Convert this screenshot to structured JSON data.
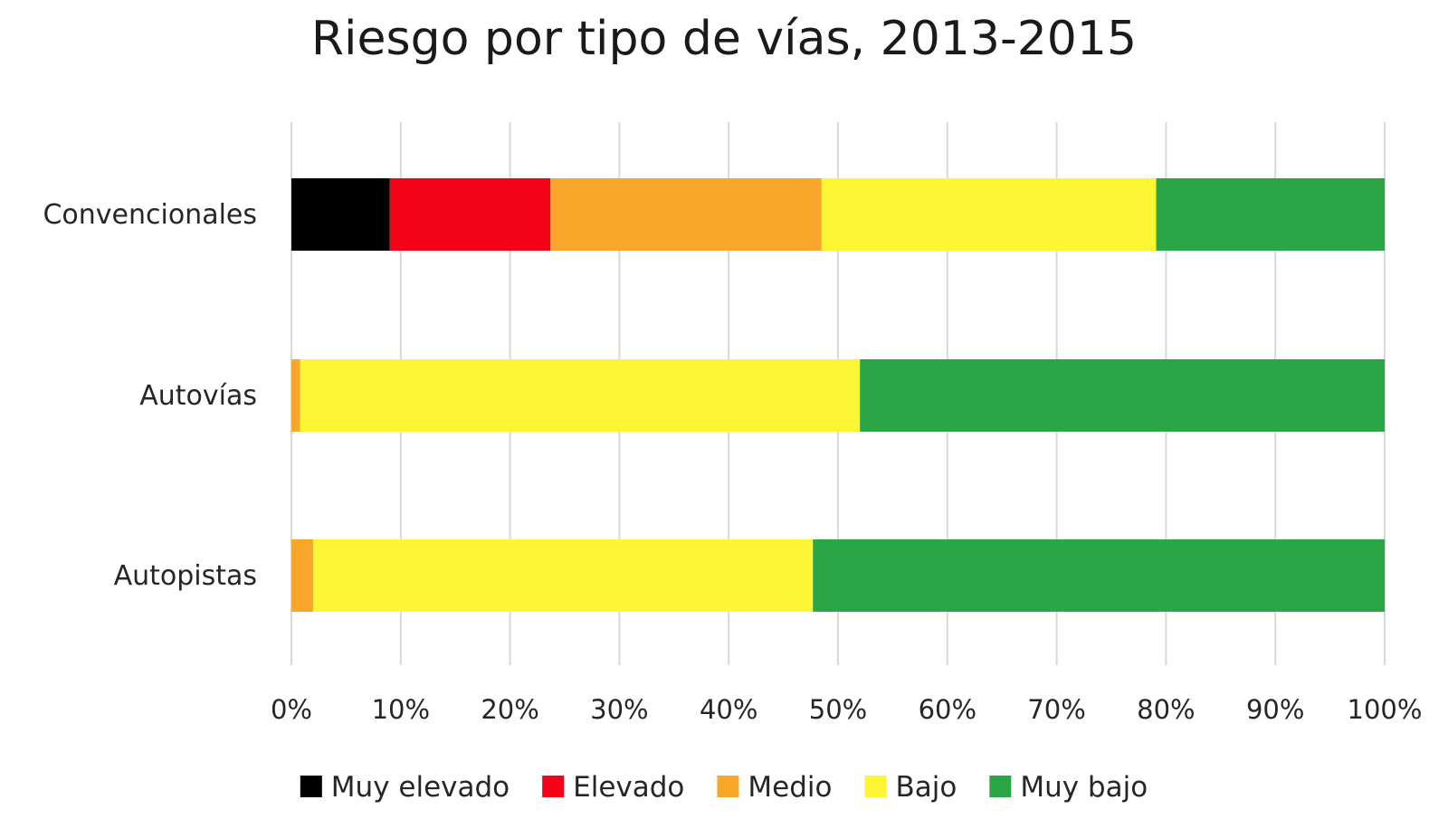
{
  "chart_data": {
    "type": "bar",
    "orientation": "horizontal",
    "stacked": "percent",
    "title": "Riesgo por tipo de vías, 2013-2015",
    "xlabel": "",
    "ylabel": "",
    "categories": [
      "Convencionales",
      "Autovías",
      "Autopistas"
    ],
    "xlim": [
      0,
      100
    ],
    "x_ticks": [
      0,
      10,
      20,
      30,
      40,
      50,
      60,
      70,
      80,
      90,
      100
    ],
    "x_tick_labels": [
      "0%",
      "10%",
      "20%",
      "30%",
      "40%",
      "50%",
      "60%",
      "70%",
      "80%",
      "90%",
      "100%"
    ],
    "grid": "vertical",
    "legend": "bottom",
    "series": [
      {
        "name": "Muy elevado",
        "color": "#000000",
        "values": [
          9,
          0,
          0
        ]
      },
      {
        "name": "Elevado",
        "color": "#f20317",
        "values": [
          14.7,
          0,
          0
        ]
      },
      {
        "name": "Medio",
        "color": "#f8a72a",
        "values": [
          24.8,
          0.8,
          2
        ]
      },
      {
        "name": "Bajo",
        "color": "#fdf634",
        "values": [
          30.6,
          51.2,
          45.7
        ]
      },
      {
        "name": "Muy bajo",
        "color": "#2aa647",
        "values": [
          20.9,
          48,
          52.3
        ]
      }
    ]
  }
}
